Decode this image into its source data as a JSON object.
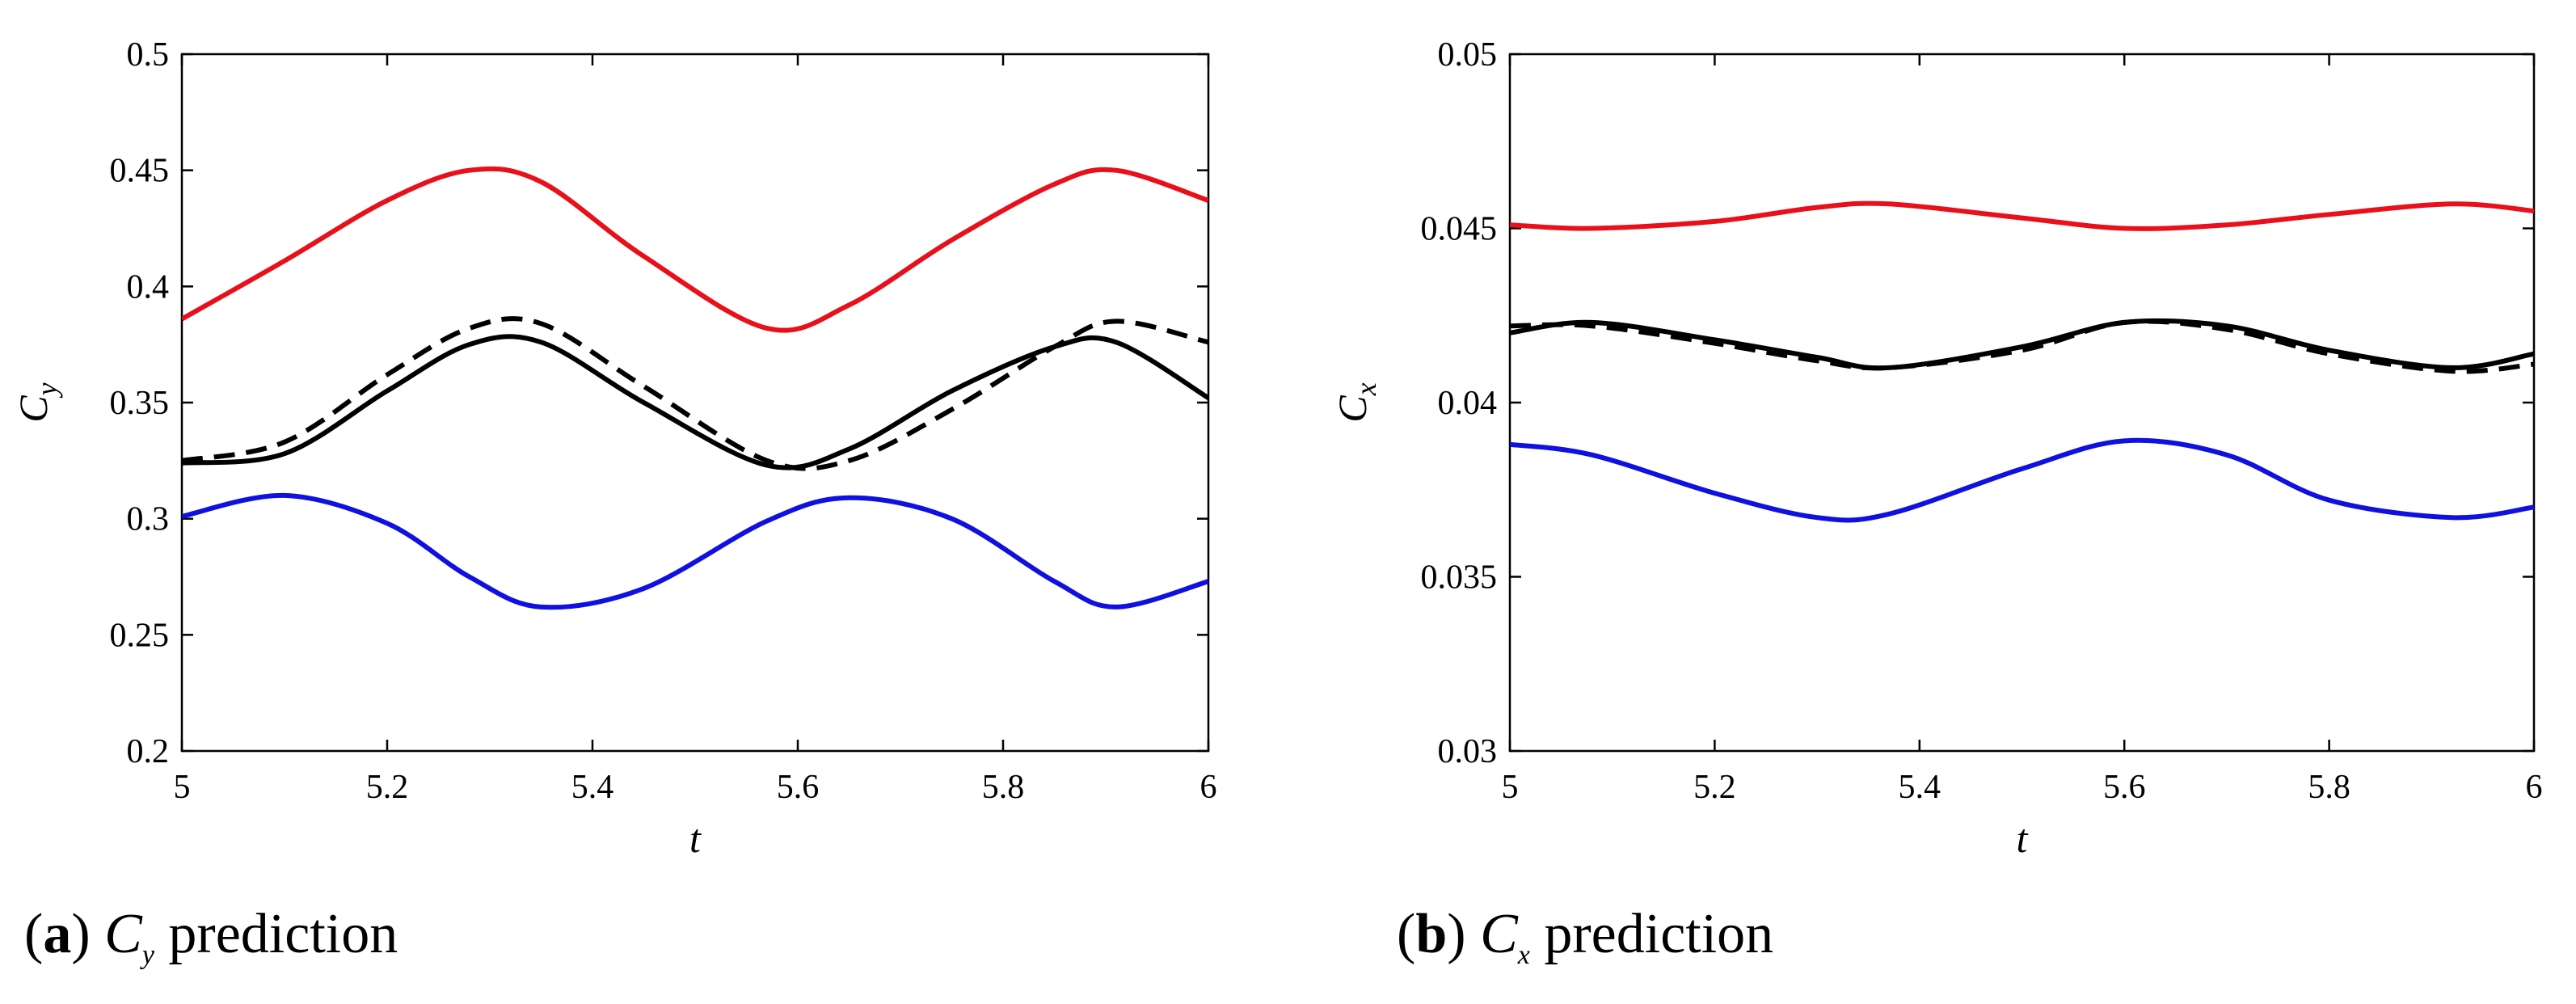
{
  "chart_data": [
    {
      "id": "a",
      "type": "line",
      "caption": {
        "letter": "a",
        "symbol": "C",
        "subscript": "y",
        "text": "prediction"
      },
      "xlabel": "t",
      "ylabel": {
        "symbol": "C",
        "subscript": "y"
      },
      "xlim": [
        5,
        6
      ],
      "ylim": [
        0.2,
        0.5
      ],
      "xticks": [
        5,
        5.2,
        5.4,
        5.6,
        5.8,
        6
      ],
      "xtick_labels": [
        "5",
        "5.2",
        "5.4",
        "5.6",
        "5.8",
        "6"
      ],
      "yticks": [
        0.2,
        0.25,
        0.3,
        0.35,
        0.4,
        0.45,
        0.5
      ],
      "ytick_labels": [
        "0.2",
        "0.25",
        "0.3",
        "0.35",
        "0.4",
        "0.45",
        "0.5"
      ],
      "x": [
        5.0,
        5.1,
        5.2,
        5.28,
        5.35,
        5.45,
        5.57,
        5.65,
        5.75,
        5.85,
        5.91,
        6.0
      ],
      "series": [
        {
          "name": "red",
          "color": "#e8101a",
          "style": "solid",
          "values": [
            0.386,
            0.411,
            0.437,
            0.45,
            0.445,
            0.413,
            0.382,
            0.392,
            0.42,
            0.444,
            0.45,
            0.437
          ]
        },
        {
          "name": "black-dashed",
          "color": "#000000",
          "style": "dashed",
          "values": [
            0.325,
            0.333,
            0.362,
            0.382,
            0.384,
            0.357,
            0.325,
            0.325,
            0.347,
            0.374,
            0.385,
            0.376
          ]
        },
        {
          "name": "black-solid",
          "color": "#000000",
          "style": "solid",
          "values": [
            0.324,
            0.328,
            0.355,
            0.375,
            0.376,
            0.35,
            0.323,
            0.33,
            0.355,
            0.374,
            0.376,
            0.352
          ]
        },
        {
          "name": "blue",
          "color": "#1010e0",
          "style": "solid",
          "values": [
            0.301,
            0.31,
            0.298,
            0.275,
            0.262,
            0.27,
            0.299,
            0.309,
            0.3,
            0.273,
            0.262,
            0.273
          ]
        }
      ]
    },
    {
      "id": "b",
      "type": "line",
      "caption": {
        "letter": "b",
        "symbol": "C",
        "subscript": "x",
        "text": "prediction"
      },
      "xlabel": "t",
      "ylabel": {
        "symbol": "C",
        "subscript": "x"
      },
      "xlim": [
        5,
        6
      ],
      "ylim": [
        0.03,
        0.05
      ],
      "xticks": [
        5,
        5.2,
        5.4,
        5.6,
        5.8,
        6
      ],
      "xtick_labels": [
        "5",
        "5.2",
        "5.4",
        "5.6",
        "5.8",
        "6"
      ],
      "yticks": [
        0.03,
        0.035,
        0.04,
        0.045,
        0.05
      ],
      "ytick_labels": [
        "0.03",
        "0.035",
        "0.04",
        "0.045",
        "0.05"
      ],
      "x": [
        5.0,
        5.08,
        5.2,
        5.3,
        5.37,
        5.5,
        5.6,
        5.7,
        5.8,
        5.92,
        6.0
      ],
      "series": [
        {
          "name": "red",
          "color": "#e8101a",
          "style": "solid",
          "values": [
            0.0451,
            0.045,
            0.0452,
            0.0456,
            0.0457,
            0.0453,
            0.045,
            0.0451,
            0.0454,
            0.0457,
            0.0455
          ]
        },
        {
          "name": "black-dashed",
          "color": "#000000",
          "style": "dashed",
          "values": [
            0.0422,
            0.0422,
            0.0417,
            0.0412,
            0.041,
            0.0415,
            0.0423,
            0.0421,
            0.0414,
            0.0409,
            0.0411
          ]
        },
        {
          "name": "black-solid",
          "color": "#000000",
          "style": "solid",
          "values": [
            0.042,
            0.0423,
            0.0418,
            0.0413,
            0.041,
            0.0416,
            0.0423,
            0.0422,
            0.0415,
            0.041,
            0.0414
          ]
        },
        {
          "name": "blue",
          "color": "#1010e0",
          "style": "solid",
          "values": [
            0.0388,
            0.0385,
            0.0374,
            0.0367,
            0.0368,
            0.0381,
            0.0389,
            0.0385,
            0.0372,
            0.0367,
            0.037
          ]
        }
      ]
    }
  ]
}
